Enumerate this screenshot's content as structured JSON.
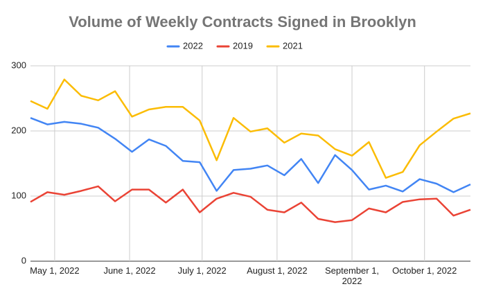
{
  "chart_data": {
    "type": "line",
    "title": "Volume of Weekly Contracts Signed in Brooklyn",
    "x": [
      "2022-04-21",
      "2022-04-28",
      "2022-05-05",
      "2022-05-12",
      "2022-05-19",
      "2022-05-26",
      "2022-06-02",
      "2022-06-09",
      "2022-06-16",
      "2022-06-23",
      "2022-06-30",
      "2022-07-07",
      "2022-07-14",
      "2022-07-21",
      "2022-07-28",
      "2022-08-04",
      "2022-08-11",
      "2022-08-18",
      "2022-08-25",
      "2022-09-01",
      "2022-09-08",
      "2022-09-15",
      "2022-09-22",
      "2022-09-29",
      "2022-10-06",
      "2022-10-13",
      "2022-10-20"
    ],
    "series": [
      {
        "name": "2022",
        "color": "#4285f4",
        "values": [
          220,
          210,
          214,
          211,
          205,
          188,
          168,
          187,
          177,
          154,
          152,
          108,
          140,
          142,
          147,
          132,
          157,
          120,
          163,
          140,
          110,
          116,
          107,
          126,
          119,
          106,
          118
        ]
      },
      {
        "name": "2019",
        "color": "#ea4335",
        "values": [
          91,
          106,
          102,
          108,
          115,
          92,
          110,
          110,
          90,
          110,
          75,
          96,
          105,
          99,
          79,
          75,
          90,
          65,
          60,
          63,
          81,
          75,
          91,
          95,
          96,
          70,
          79
        ]
      },
      {
        "name": "2021",
        "color": "#fbbc04",
        "values": [
          246,
          234,
          279,
          254,
          247,
          261,
          222,
          233,
          237,
          237,
          216,
          155,
          220,
          199,
          204,
          182,
          196,
          193,
          172,
          162,
          183,
          128,
          137,
          178,
          199,
          219,
          227
        ]
      }
    ],
    "xlim": [
      "2022-04-21",
      "2022-10-20"
    ],
    "xticks": [
      {
        "value": "2022-05-01",
        "label": "May 1, 2022"
      },
      {
        "value": "2022-06-01",
        "label": "June 1, 2022"
      },
      {
        "value": "2022-07-01",
        "label": "July 1, 2022"
      },
      {
        "value": "2022-08-01",
        "label": "August 1, 2022"
      },
      {
        "value": "2022-09-01",
        "label": "September 1, 2022"
      },
      {
        "value": "2022-10-01",
        "label": "October 1, 2022"
      }
    ],
    "ylim": [
      0,
      300
    ],
    "yticks": [
      0,
      100,
      200,
      300
    ],
    "grid": true,
    "legend": "top"
  }
}
